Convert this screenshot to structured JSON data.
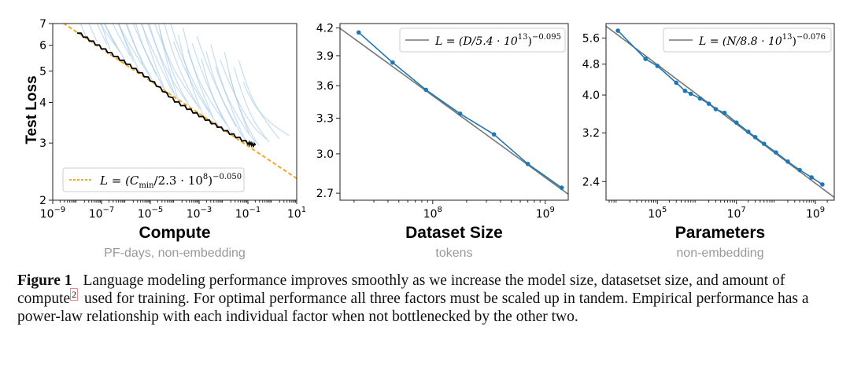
{
  "chart_data": [
    {
      "type": "line",
      "panel": "compute",
      "title": "Compute",
      "subtitle": "PF-days, non-embedding",
      "ylabel": "Test Loss",
      "xscale": "log",
      "yscale": "log",
      "xlim_exp": [
        -9,
        1
      ],
      "ylim": [
        2,
        7
      ],
      "xtick_exps": [
        -9,
        -7,
        -5,
        -3,
        -1,
        1
      ],
      "xtick_labels": [
        {
          "base": "10",
          "exp": "−9"
        },
        {
          "base": "10",
          "exp": "−7"
        },
        {
          "base": "10",
          "exp": "−5"
        },
        {
          "base": "10",
          "exp": "−3"
        },
        {
          "base": "10",
          "exp": "−1"
        },
        {
          "base": "10",
          "exp": "1"
        }
      ],
      "ytick_values": [
        2,
        3,
        4,
        5,
        6,
        7
      ],
      "ytick_labels": [
        "2",
        "3",
        "4",
        "5",
        "6",
        "7"
      ],
      "fit": {
        "coef": 230000000.0,
        "exp": -0.05
      },
      "legend": {
        "position": "lower-left",
        "pre": "L = (C",
        "sub": "min",
        "mid": "/2.3 · 10",
        "sup1": "8",
        "post": ")",
        "sup2": "−0.050"
      },
      "frontier": [
        {
          "x": 1e-08,
          "y": 6.6
        },
        {
          "x": 1e-07,
          "y": 5.9
        },
        {
          "x": 1e-06,
          "y": 5.3
        },
        {
          "x": 1e-05,
          "y": 4.7
        },
        {
          "x": 0.0001,
          "y": 4.05
        },
        {
          "x": 0.001,
          "y": 3.65
        },
        {
          "x": 0.01,
          "y": 3.3
        },
        {
          "x": 0.1,
          "y": 3.0
        },
        {
          "x": 0.2,
          "y": 2.95
        }
      ],
      "curve_count": 40,
      "colors": {
        "curves": "#9ec5e6",
        "frontier": "#000000",
        "fit": "#f5a623"
      }
    },
    {
      "type": "line",
      "panel": "dataset",
      "title": "Dataset Size",
      "subtitle": "tokens",
      "xscale": "log",
      "yscale": "log",
      "xlim": [
        15000000.0,
        1600000000.0
      ],
      "ylim": [
        2.65,
        4.25
      ],
      "xtick_values": [
        100000000.0,
        1000000000.0
      ],
      "xtick_labels": [
        {
          "base": "10",
          "exp": "8"
        },
        {
          "base": "10",
          "exp": "9"
        }
      ],
      "ytick_values": [
        2.7,
        3.0,
        3.3,
        3.6,
        3.9,
        4.2
      ],
      "ytick_labels": [
        "2.7",
        "3.0",
        "3.3",
        "3.6",
        "3.9",
        "4.2"
      ],
      "points": [
        {
          "x": 22000000.0,
          "y": 4.15
        },
        {
          "x": 44000000.0,
          "y": 3.83
        },
        {
          "x": 87000000.0,
          "y": 3.56
        },
        {
          "x": 175000000.0,
          "y": 3.34
        },
        {
          "x": 350000000.0,
          "y": 3.16
        },
        {
          "x": 700000000.0,
          "y": 2.92
        },
        {
          "x": 1400000000.0,
          "y": 2.74
        }
      ],
      "fit": {
        "coef": 54000000000000.0,
        "exp": -0.095
      },
      "legend": {
        "position": "upper-right",
        "pre": "L = (D/5.4 · 10",
        "sup1": "13",
        "post": ")",
        "sup2": "−0.095"
      },
      "colors": {
        "points": "#1f77b4",
        "fit": "#777777"
      }
    },
    {
      "type": "line",
      "panel": "parameters",
      "title": "Parameters",
      "subtitle": "non-embedding",
      "xscale": "log",
      "yscale": "log",
      "xlim": [
        5000.0,
        3000000000.0
      ],
      "ylim": [
        2.15,
        6.1
      ],
      "xtick_values": [
        100000.0,
        10000000.0,
        1000000000.0
      ],
      "xtick_labels": [
        {
          "base": "10",
          "exp": "5"
        },
        {
          "base": "10",
          "exp": "7"
        },
        {
          "base": "10",
          "exp": "9"
        }
      ],
      "ytick_values": [
        2.4,
        3.2,
        4.0,
        4.8,
        5.6
      ],
      "ytick_labels": [
        "2.4",
        "3.2",
        "4.0",
        "4.8",
        "5.6"
      ],
      "points": [
        {
          "x": 10000.0,
          "y": 5.85
        },
        {
          "x": 50000.0,
          "y": 4.95
        },
        {
          "x": 100000.0,
          "y": 4.75
        },
        {
          "x": 300000.0,
          "y": 4.3
        },
        {
          "x": 500000.0,
          "y": 4.1
        },
        {
          "x": 700000.0,
          "y": 4.03
        },
        {
          "x": 1200000.0,
          "y": 3.92
        },
        {
          "x": 2000000.0,
          "y": 3.8
        },
        {
          "x": 3000000.0,
          "y": 3.68
        },
        {
          "x": 5000000.0,
          "y": 3.6
        },
        {
          "x": 10000000.0,
          "y": 3.4
        },
        {
          "x": 20000000.0,
          "y": 3.22
        },
        {
          "x": 30000000.0,
          "y": 3.12
        },
        {
          "x": 50000000.0,
          "y": 3.0
        },
        {
          "x": 100000000.0,
          "y": 2.85
        },
        {
          "x": 200000000.0,
          "y": 2.7
        },
        {
          "x": 400000000.0,
          "y": 2.57
        },
        {
          "x": 800000000.0,
          "y": 2.46
        },
        {
          "x": 1500000000.0,
          "y": 2.36
        }
      ],
      "fit": {
        "coef": 88000000000000.0,
        "exp": -0.076
      },
      "legend": {
        "position": "upper-right",
        "pre": "L = (N/8.8 · 10",
        "sup1": "13",
        "post": ")",
        "sup2": "−0.076"
      },
      "colors": {
        "points": "#1f77b4",
        "fit": "#777777"
      }
    }
  ],
  "caption": {
    "label": "Figure 1",
    "text_before": "Language modeling performance improves smoothly as we increase the model size, datasetset size, and amount of compute",
    "footnote": "2",
    "text_after": " used for training. For optimal performance all three factors must be scaled up in tandem. Empirical performance has a power-law relationship with each individual factor when not bottlenecked by the other two."
  }
}
